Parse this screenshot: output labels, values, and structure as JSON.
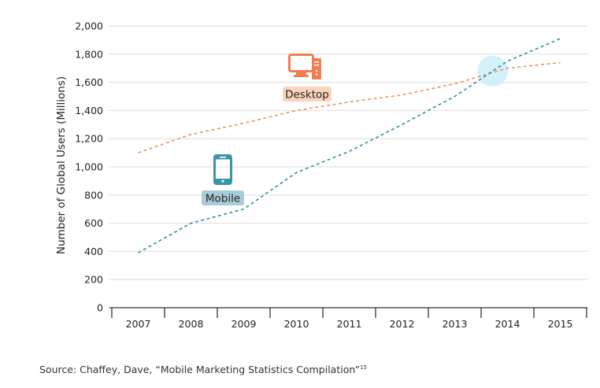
{
  "chart_data": {
    "type": "line",
    "title": "",
    "xlabel": "",
    "ylabel": "Number of Global Users (Millions)",
    "x": [
      "2007",
      "2008",
      "2009",
      "2010",
      "2011",
      "2012",
      "2013",
      "2014",
      "2015"
    ],
    "ylim": [
      0,
      2000
    ],
    "yticks": [
      0,
      200,
      400,
      600,
      800,
      1000,
      1200,
      1400,
      1600,
      1800,
      2000
    ],
    "ytick_labels": [
      "0",
      "200",
      "400",
      "600",
      "800",
      "1,000",
      "1,200",
      "1,400",
      "1,600",
      "1,800",
      "2,000"
    ],
    "grid": "horizontal",
    "series": [
      {
        "name": "Desktop",
        "color": "#f0915a",
        "label_bg": "#fbd5bb",
        "icon": "desktop-computer-icon",
        "icon_color": "#f27d52",
        "style": "dashed",
        "values": [
          1100,
          1230,
          1310,
          1400,
          1460,
          1510,
          1590,
          1700,
          1740
        ]
      },
      {
        "name": "Mobile",
        "color": "#2f8fa3",
        "label_bg": "#a9cdd8",
        "icon": "mobile-phone-icon",
        "icon_color": "#3a96a6",
        "style": "dashed",
        "values": [
          390,
          600,
          700,
          960,
          1110,
          1300,
          1500,
          1750,
          1910
        ]
      }
    ],
    "annotations": [
      {
        "type": "highlight-circle",
        "label": "crossover",
        "x_between": [
          "2013",
          "2014"
        ],
        "y": 1680,
        "color": "#cdeef8"
      }
    ],
    "legend": "inline-labels"
  },
  "source": {
    "text": "Source: Chaffey, Dave, “Mobile Marketing Statistics Compilation”",
    "footnote": "15"
  }
}
